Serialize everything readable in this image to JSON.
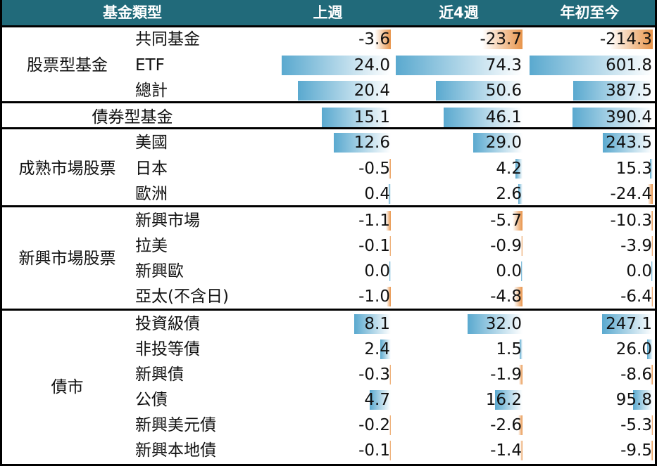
{
  "header": {
    "col0": "基金類型",
    "col1": "上週",
    "col2": "近4週",
    "col3": "年初至今"
  },
  "colors": {
    "header_bg": "#216a7a",
    "header_text": "#ffffff",
    "positive_bar": "#5aa9cf",
    "negative_bar": "#e8944a"
  },
  "chart_data": {
    "type": "table",
    "columns": [
      "上週",
      "近4週",
      "年初至今"
    ],
    "groups": [
      {
        "name": "股票型基金",
        "rows": [
          {
            "label": "共同基金",
            "values": [
              -3.6,
              -23.7,
              -214.3
            ]
          },
          {
            "label": "ETF",
            "values": [
              24.0,
              74.3,
              601.8
            ]
          },
          {
            "label": "總計",
            "values": [
              20.4,
              50.6,
              387.5
            ]
          }
        ]
      },
      {
        "name": "債券型基金",
        "rows": [
          {
            "label": "",
            "values": [
              15.1,
              46.1,
              390.4
            ]
          }
        ]
      },
      {
        "name": "成熟市場股票",
        "rows": [
          {
            "label": "美國",
            "values": [
              12.6,
              29.0,
              243.5
            ]
          },
          {
            "label": "日本",
            "values": [
              -0.5,
              4.2,
              15.3
            ]
          },
          {
            "label": "歐洲",
            "values": [
              0.4,
              2.6,
              -24.4
            ]
          }
        ]
      },
      {
        "name": "新興市場股票",
        "rows": [
          {
            "label": "新興市場",
            "values": [
              -1.1,
              -5.7,
              -10.3
            ]
          },
          {
            "label": "拉美",
            "values": [
              -0.1,
              -0.9,
              -3.9
            ]
          },
          {
            "label": "新興歐",
            "values": [
              0.0,
              0.0,
              0.0
            ]
          },
          {
            "label": "亞太(不含日)",
            "values": [
              -1.0,
              -4.8,
              -6.4
            ]
          }
        ]
      },
      {
        "name": "債市",
        "rows": [
          {
            "label": "投資級債",
            "values": [
              8.1,
              32.0,
              247.1
            ]
          },
          {
            "label": "非投等債",
            "values": [
              2.4,
              1.5,
              26.0
            ]
          },
          {
            "label": "新興債",
            "values": [
              -0.3,
              -1.9,
              -8.6
            ]
          },
          {
            "label": "公債",
            "values": [
              4.7,
              16.2,
              95.8
            ]
          },
          {
            "label": "新興美元債",
            "values": [
              -0.2,
              -2.6,
              -5.3
            ]
          },
          {
            "label": "新興本地債",
            "values": [
              -0.1,
              -1.4,
              -9.5
            ]
          }
        ]
      }
    ]
  }
}
